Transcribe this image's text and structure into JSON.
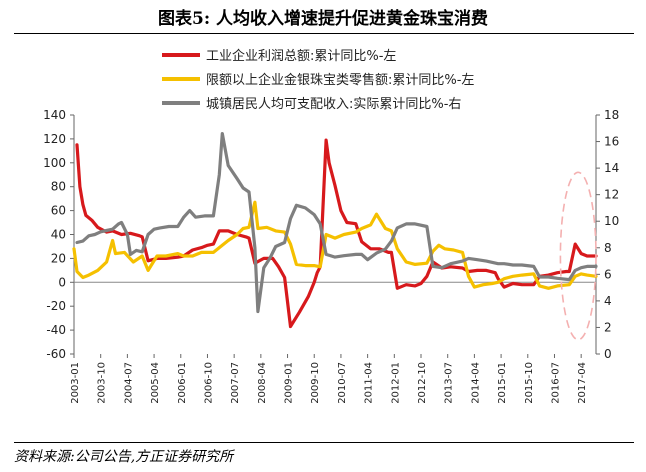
{
  "title": "图表5:   人均收入增速提升促进黄金珠宝消费",
  "source": "资料来源:公司公告,方正证券研究所",
  "chart_data": {
    "type": "line",
    "left_axis": {
      "min": -60,
      "max": 140,
      "ticks": [
        -60,
        -40,
        -20,
        0,
        20,
        40,
        60,
        80,
        100,
        120,
        140
      ]
    },
    "right_axis": {
      "min": 0,
      "max": 18,
      "ticks": [
        0,
        2,
        4,
        6,
        8,
        10,
        12,
        14,
        16,
        18
      ]
    },
    "x_start": "2003-01",
    "x_end": "2017-09",
    "x_tick_labels": [
      "2003-01",
      "2003-10",
      "2004-07",
      "2005-04",
      "2006-01",
      "2006-10",
      "2007-07",
      "2008-04",
      "2009-01",
      "2009-10",
      "2010-07",
      "2011-04",
      "2012-01",
      "2012-10",
      "2013-07",
      "2014-04",
      "2015-01",
      "2015-10",
      "2016-07",
      "2017-04"
    ],
    "series": [
      {
        "name": "工业企业利润总额:累计同比%-左",
        "axis": "left",
        "color": "#d7191c",
        "points": [
          [
            "2003-02",
            115
          ],
          [
            "2003-03",
            80
          ],
          [
            "2003-04",
            65
          ],
          [
            "2003-05",
            56
          ],
          [
            "2003-07",
            52
          ],
          [
            "2003-09",
            46
          ],
          [
            "2003-12",
            42
          ],
          [
            "2004-02",
            43
          ],
          [
            "2004-05",
            40
          ],
          [
            "2004-08",
            41
          ],
          [
            "2004-11",
            39
          ],
          [
            "2004-12",
            38
          ],
          [
            "2005-02",
            18
          ],
          [
            "2005-05",
            20
          ],
          [
            "2005-08",
            20
          ],
          [
            "2005-12",
            21
          ],
          [
            "2006-02",
            22
          ],
          [
            "2006-05",
            27
          ],
          [
            "2006-08",
            29
          ],
          [
            "2006-10",
            31
          ],
          [
            "2006-12",
            32
          ],
          [
            "2007-02",
            43
          ],
          [
            "2007-05",
            43
          ],
          [
            "2007-08",
            40
          ],
          [
            "2007-11",
            38
          ],
          [
            "2007-12",
            37
          ],
          [
            "2008-02",
            16
          ],
          [
            "2008-05",
            20
          ],
          [
            "2008-08",
            20
          ],
          [
            "2008-10",
            13
          ],
          [
            "2008-12",
            4
          ],
          [
            "2009-02",
            -37
          ],
          [
            "2009-05",
            -25
          ],
          [
            "2009-08",
            -12
          ],
          [
            "2009-10",
            0
          ],
          [
            "2009-11",
            8
          ],
          [
            "2009-12",
            13
          ],
          [
            "2010-02",
            119
          ],
          [
            "2010-03",
            100
          ],
          [
            "2010-05",
            81
          ],
          [
            "2010-07",
            60
          ],
          [
            "2010-09",
            50
          ],
          [
            "2010-12",
            49
          ],
          [
            "2011-02",
            34
          ],
          [
            "2011-05",
            28
          ],
          [
            "2011-08",
            28
          ],
          [
            "2011-11",
            25
          ],
          [
            "2011-12",
            25
          ],
          [
            "2012-02",
            -5
          ],
          [
            "2012-05",
            -2
          ],
          [
            "2012-08",
            -3
          ],
          [
            "2012-10",
            -1
          ],
          [
            "2012-12",
            5
          ],
          [
            "2013-02",
            17
          ],
          [
            "2013-05",
            12
          ],
          [
            "2013-08",
            13
          ],
          [
            "2013-12",
            12
          ],
          [
            "2014-02",
            9
          ],
          [
            "2014-05",
            10
          ],
          [
            "2014-08",
            10
          ],
          [
            "2014-11",
            8
          ],
          [
            "2014-12",
            3
          ],
          [
            "2015-02",
            -4
          ],
          [
            "2015-05",
            -1
          ],
          [
            "2015-08",
            -2
          ],
          [
            "2015-11",
            -2
          ],
          [
            "2015-12",
            -2
          ],
          [
            "2016-02",
            5
          ],
          [
            "2016-05",
            6
          ],
          [
            "2016-08",
            8
          ],
          [
            "2016-11",
            9
          ],
          [
            "2016-12",
            9
          ],
          [
            "2017-02",
            32
          ],
          [
            "2017-04",
            24
          ],
          [
            "2017-06",
            22
          ],
          [
            "2017-08",
            22
          ],
          [
            "2017-09",
            22
          ]
        ]
      },
      {
        "name": "限额以上企业金银珠宝类零售额:累计同比%-左",
        "axis": "left",
        "color": "#f5c000",
        "points": [
          [
            "2003-01",
            28
          ],
          [
            "2003-02",
            9
          ],
          [
            "2003-04",
            4
          ],
          [
            "2003-06",
            6
          ],
          [
            "2003-09",
            10
          ],
          [
            "2003-12",
            17
          ],
          [
            "2004-02",
            35
          ],
          [
            "2004-03",
            24
          ],
          [
            "2004-06",
            25
          ],
          [
            "2004-09",
            17
          ],
          [
            "2004-12",
            22
          ],
          [
            "2005-02",
            10
          ],
          [
            "2005-05",
            22
          ],
          [
            "2005-08",
            22
          ],
          [
            "2005-12",
            24
          ],
          [
            "2006-02",
            22
          ],
          [
            "2006-05",
            22
          ],
          [
            "2006-08",
            25
          ],
          [
            "2006-12",
            25
          ],
          [
            "2007-02",
            29
          ],
          [
            "2007-05",
            35
          ],
          [
            "2007-08",
            40
          ],
          [
            "2007-10",
            45
          ],
          [
            "2007-12",
            46
          ],
          [
            "2008-02",
            67
          ],
          [
            "2008-03",
            45
          ],
          [
            "2008-06",
            46
          ],
          [
            "2008-09",
            43
          ],
          [
            "2008-12",
            42
          ],
          [
            "2009-02",
            32
          ],
          [
            "2009-04",
            15
          ],
          [
            "2009-07",
            14
          ],
          [
            "2009-10",
            14
          ],
          [
            "2009-12",
            13
          ],
          [
            "2010-02",
            40
          ],
          [
            "2010-05",
            37
          ],
          [
            "2010-08",
            40
          ],
          [
            "2010-12",
            42
          ],
          [
            "2011-02",
            45
          ],
          [
            "2011-05",
            48
          ],
          [
            "2011-07",
            57
          ],
          [
            "2011-10",
            45
          ],
          [
            "2011-12",
            43
          ],
          [
            "2012-02",
            28
          ],
          [
            "2012-05",
            17
          ],
          [
            "2012-08",
            15
          ],
          [
            "2012-12",
            16
          ],
          [
            "2013-02",
            26
          ],
          [
            "2013-04",
            31
          ],
          [
            "2013-06",
            28
          ],
          [
            "2013-09",
            27
          ],
          [
            "2013-12",
            25
          ],
          [
            "2014-02",
            5
          ],
          [
            "2014-04",
            -4
          ],
          [
            "2014-07",
            -2
          ],
          [
            "2014-10",
            -1
          ],
          [
            "2014-12",
            0
          ],
          [
            "2015-02",
            3
          ],
          [
            "2015-05",
            5
          ],
          [
            "2015-08",
            6
          ],
          [
            "2015-12",
            7
          ],
          [
            "2016-02",
            -3
          ],
          [
            "2016-05",
            -5
          ],
          [
            "2016-08",
            -3
          ],
          [
            "2016-12",
            -2
          ],
          [
            "2017-02",
            5
          ],
          [
            "2017-04",
            7
          ],
          [
            "2017-06",
            6
          ],
          [
            "2017-09",
            5
          ]
        ]
      },
      {
        "name": "城镇居民人均可支配收入:实际累计同比%-右",
        "axis": "right",
        "color": "#7f7f7f",
        "points": [
          [
            "2003-02",
            8.4
          ],
          [
            "2003-04",
            8.5
          ],
          [
            "2003-06",
            8.9
          ],
          [
            "2003-08",
            9.0
          ],
          [
            "2003-10",
            9.2
          ],
          [
            "2003-12",
            9.3
          ],
          [
            "2004-02",
            9.4
          ],
          [
            "2004-04",
            9.8
          ],
          [
            "2004-05",
            9.9
          ],
          [
            "2004-07",
            9.0
          ],
          [
            "2004-08",
            7.5
          ],
          [
            "2004-10",
            7.8
          ],
          [
            "2004-12",
            7.7
          ],
          [
            "2005-02",
            9.0
          ],
          [
            "2005-04",
            9.4
          ],
          [
            "2005-06",
            9.5
          ],
          [
            "2005-09",
            9.6
          ],
          [
            "2005-12",
            9.6
          ],
          [
            "2006-02",
            10.3
          ],
          [
            "2006-04",
            10.8
          ],
          [
            "2006-06",
            10.3
          ],
          [
            "2006-09",
            10.4
          ],
          [
            "2006-12",
            10.4
          ],
          [
            "2007-02",
            13.5
          ],
          [
            "2007-03",
            16.6
          ],
          [
            "2007-05",
            14.2
          ],
          [
            "2007-08",
            13.2
          ],
          [
            "2007-10",
            12.5
          ],
          [
            "2007-12",
            12.2
          ],
          [
            "2008-02",
            8.0
          ],
          [
            "2008-03",
            3.2
          ],
          [
            "2008-05",
            6.5
          ],
          [
            "2008-07",
            7.2
          ],
          [
            "2008-09",
            8.1
          ],
          [
            "2008-12",
            8.4
          ],
          [
            "2009-02",
            10.2
          ],
          [
            "2009-04",
            11.2
          ],
          [
            "2009-07",
            11.0
          ],
          [
            "2009-10",
            10.5
          ],
          [
            "2009-12",
            9.8
          ],
          [
            "2010-02",
            7.5
          ],
          [
            "2010-05",
            7.3
          ],
          [
            "2010-08",
            7.4
          ],
          [
            "2010-12",
            7.5
          ],
          [
            "2011-02",
            7.5
          ],
          [
            "2011-04",
            7.1
          ],
          [
            "2011-07",
            7.6
          ],
          [
            "2011-10",
            7.9
          ],
          [
            "2011-12",
            8.5
          ],
          [
            "2012-02",
            9.5
          ],
          [
            "2012-05",
            9.8
          ],
          [
            "2012-08",
            9.8
          ],
          [
            "2012-12",
            9.6
          ],
          [
            "2013-02",
            6.6
          ],
          [
            "2013-05",
            6.5
          ],
          [
            "2013-08",
            6.8
          ],
          [
            "2013-12",
            7.0
          ],
          [
            "2014-02",
            7.2
          ],
          [
            "2014-05",
            7.1
          ],
          [
            "2014-08",
            7.0
          ],
          [
            "2014-12",
            6.8
          ],
          [
            "2015-02",
            6.8
          ],
          [
            "2015-05",
            6.7
          ],
          [
            "2015-08",
            6.7
          ],
          [
            "2015-12",
            6.6
          ],
          [
            "2016-02",
            5.8
          ],
          [
            "2016-05",
            5.8
          ],
          [
            "2016-08",
            5.7
          ],
          [
            "2016-12",
            5.6
          ],
          [
            "2017-02",
            6.3
          ],
          [
            "2017-04",
            6.5
          ],
          [
            "2017-06",
            6.6
          ],
          [
            "2017-09",
            6.6
          ]
        ]
      }
    ],
    "highlight": {
      "shape": "dashed-ellipse",
      "color": "#f4b0b0",
      "from": "2016-09",
      "to": "2017-09",
      "left_range": [
        -48,
        92
      ]
    }
  }
}
